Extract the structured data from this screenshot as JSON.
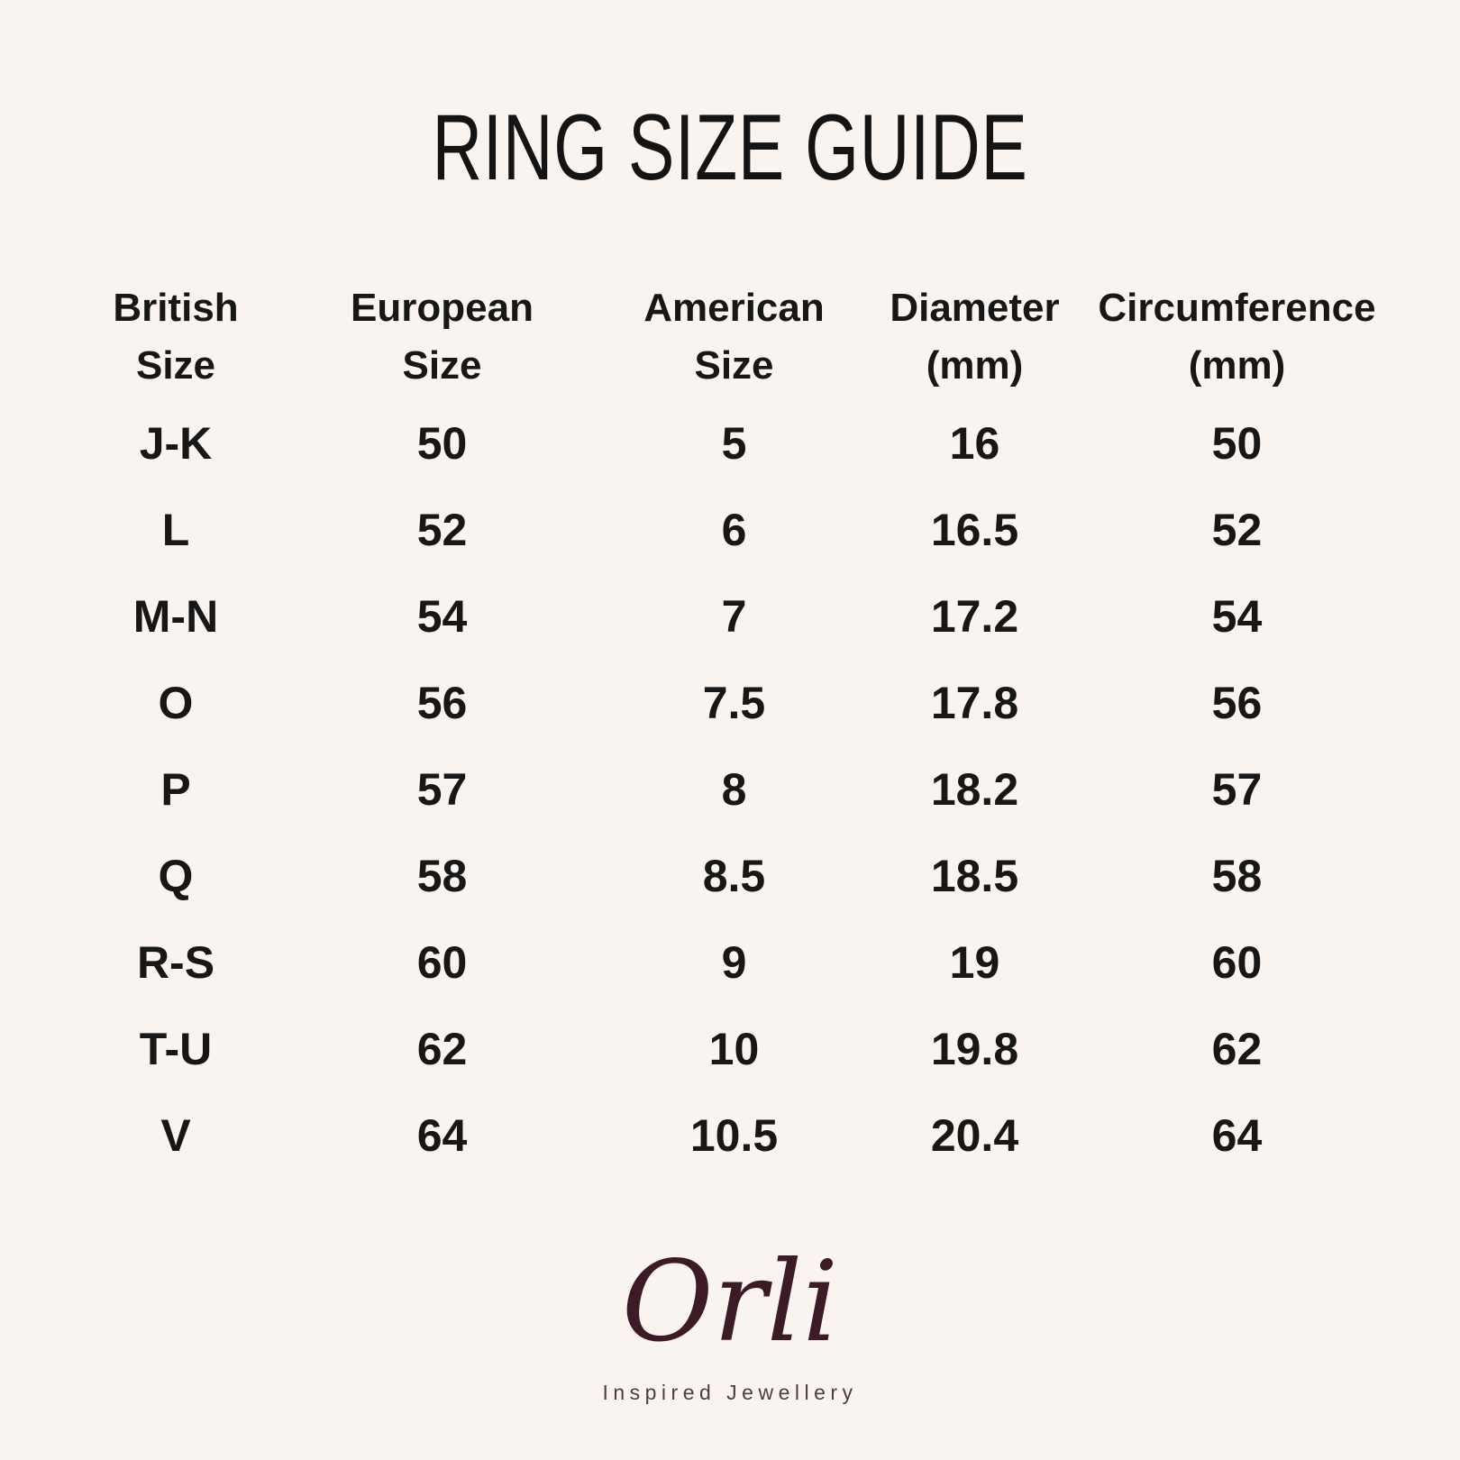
{
  "title": "RING SIZE GUIDE",
  "chart_data": {
    "type": "table",
    "title": "RING SIZE GUIDE",
    "columns": [
      "British Size",
      "European Size",
      "American Size",
      "Diameter (mm)",
      "Circumference (mm)"
    ],
    "columns_two_line": [
      {
        "line1": "British",
        "line2": "Size"
      },
      {
        "line1": "European",
        "line2": "Size"
      },
      {
        "line1": "American",
        "line2": "Size"
      },
      {
        "line1": "Diameter",
        "line2": "(mm)"
      },
      {
        "line1": "Circumference",
        "line2": "(mm)"
      }
    ],
    "rows": [
      [
        "J-K",
        "50",
        "5",
        "16",
        "50"
      ],
      [
        "L",
        "52",
        "6",
        "16.5",
        "52"
      ],
      [
        "M-N",
        "54",
        "7",
        "17.2",
        "54"
      ],
      [
        "O",
        "56",
        "7.5",
        "17.8",
        "56"
      ],
      [
        "P",
        "57",
        "8",
        "18.2",
        "57"
      ],
      [
        "Q",
        "58",
        "8.5",
        "18.5",
        "58"
      ],
      [
        "R-S",
        "60",
        "9",
        "19",
        "60"
      ],
      [
        "T-U",
        "62",
        "10",
        "19.8",
        "62"
      ],
      [
        "V",
        "64",
        "10.5",
        "20.4",
        "64"
      ]
    ]
  },
  "brand": {
    "logo_text": "Orli",
    "tagline": "Inspired Jewellery"
  },
  "colors": {
    "background": "#f9f4ef",
    "text": "#171717",
    "logo": "#3d1b26",
    "tagline": "#4e3c41"
  }
}
